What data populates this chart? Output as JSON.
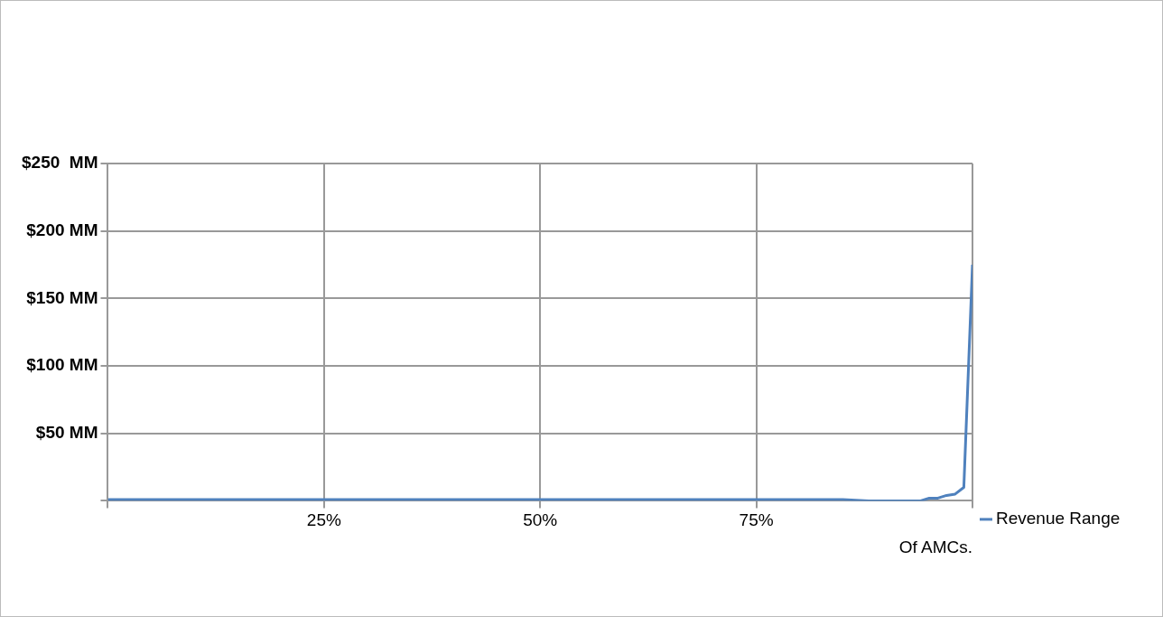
{
  "chart_data": {
    "type": "line",
    "xlabel": "Of AMCs.",
    "x": [
      0,
      10,
      20,
      30,
      40,
      50,
      60,
      70,
      80,
      85,
      88,
      90,
      92,
      94,
      95,
      96,
      97,
      98,
      99,
      100
    ],
    "series": [
      {
        "name": "Revenue Range",
        "color": "#4f81bd",
        "values": [
          1,
          1,
          1,
          1,
          1,
          1,
          1,
          1,
          1,
          1,
          0,
          0,
          0,
          0,
          2,
          2,
          4,
          5,
          10,
          175
        ]
      }
    ],
    "xlim": [
      0,
      100
    ],
    "xticks": [
      {
        "value": 0,
        "label": null
      },
      {
        "value": 25,
        "label": "25%"
      },
      {
        "value": 50,
        "label": "50%"
      },
      {
        "value": 75,
        "label": "75%"
      },
      {
        "value": 100,
        "label": null
      }
    ],
    "ylim": [
      0,
      250
    ],
    "yticks": [
      {
        "value": 0,
        "label": null
      },
      {
        "value": 50,
        "label": "$50 MM"
      },
      {
        "value": 100,
        "label": "$100 MM"
      },
      {
        "value": 150,
        "label": "$150 MM"
      },
      {
        "value": 200,
        "label": "$200 MM"
      },
      {
        "value": 250,
        "label": "$250  MM"
      }
    ],
    "grid": true,
    "marker": "none",
    "line_style": "solid"
  }
}
